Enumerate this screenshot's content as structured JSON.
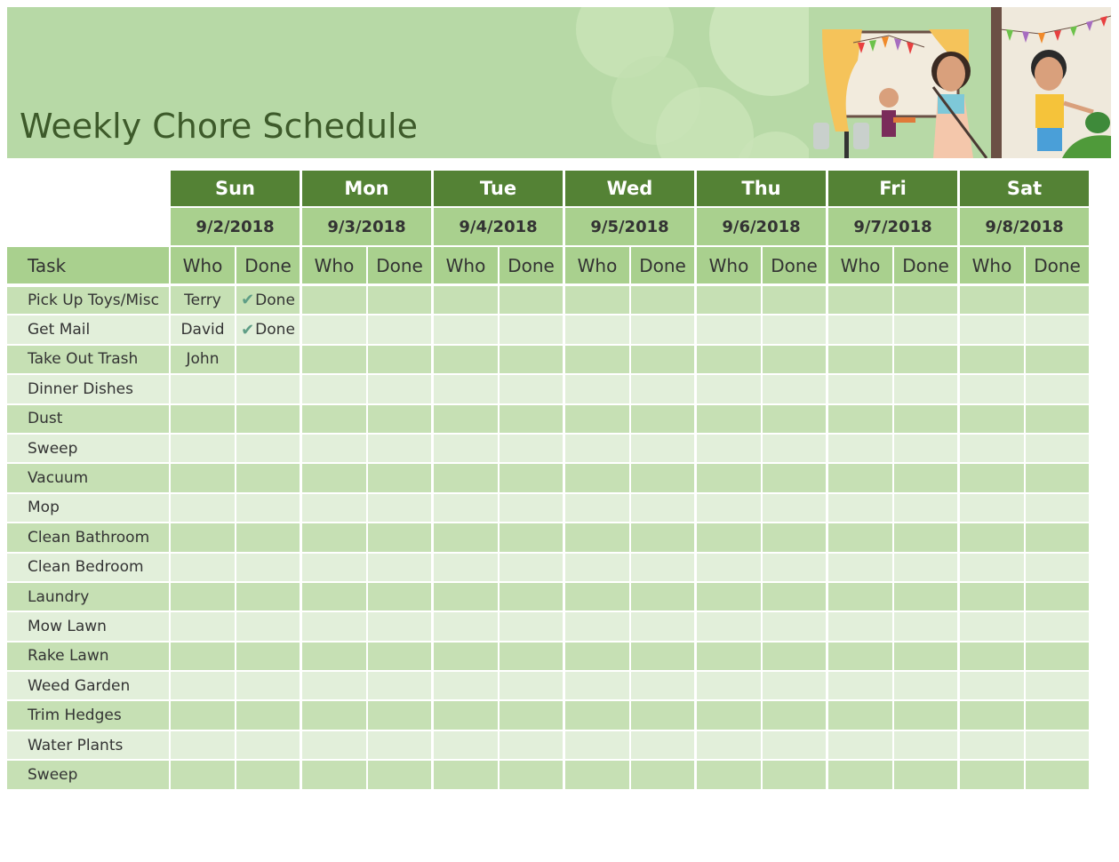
{
  "title": "Weekly Chore Schedule",
  "colors": {
    "dark_green": "#548235",
    "mid_green": "#a9d08e",
    "row_a": "#c6e0b4",
    "row_b": "#e2efda"
  },
  "days": [
    {
      "name": "Sun",
      "date": "9/2/2018"
    },
    {
      "name": "Mon",
      "date": "9/3/2018"
    },
    {
      "name": "Tue",
      "date": "9/4/2018"
    },
    {
      "name": "Wed",
      "date": "9/5/2018"
    },
    {
      "name": "Thu",
      "date": "9/6/2018"
    },
    {
      "name": "Fri",
      "date": "9/7/2018"
    },
    {
      "name": "Sat",
      "date": "9/8/2018"
    }
  ],
  "headers": {
    "task": "Task",
    "who": "Who",
    "done": "Done"
  },
  "check_icon": "checkmark-icon",
  "tasks": [
    {
      "task": "Pick Up Toys/Misc",
      "sun_who": "Terry",
      "sun_done": "Done"
    },
    {
      "task": "Get Mail",
      "sun_who": "David",
      "sun_done": "Done"
    },
    {
      "task": "Take Out Trash",
      "sun_who": "John"
    },
    {
      "task": "Dinner Dishes"
    },
    {
      "task": "Dust"
    },
    {
      "task": "Sweep"
    },
    {
      "task": "Vacuum"
    },
    {
      "task": "Mop"
    },
    {
      "task": "Clean Bathroom"
    },
    {
      "task": "Clean Bedroom"
    },
    {
      "task": "Laundry"
    },
    {
      "task": "Mow Lawn"
    },
    {
      "task": "Rake Lawn"
    },
    {
      "task": "Weed Garden"
    },
    {
      "task": "Trim Hedges"
    },
    {
      "task": "Water Plants"
    },
    {
      "task": "Sweep"
    }
  ]
}
